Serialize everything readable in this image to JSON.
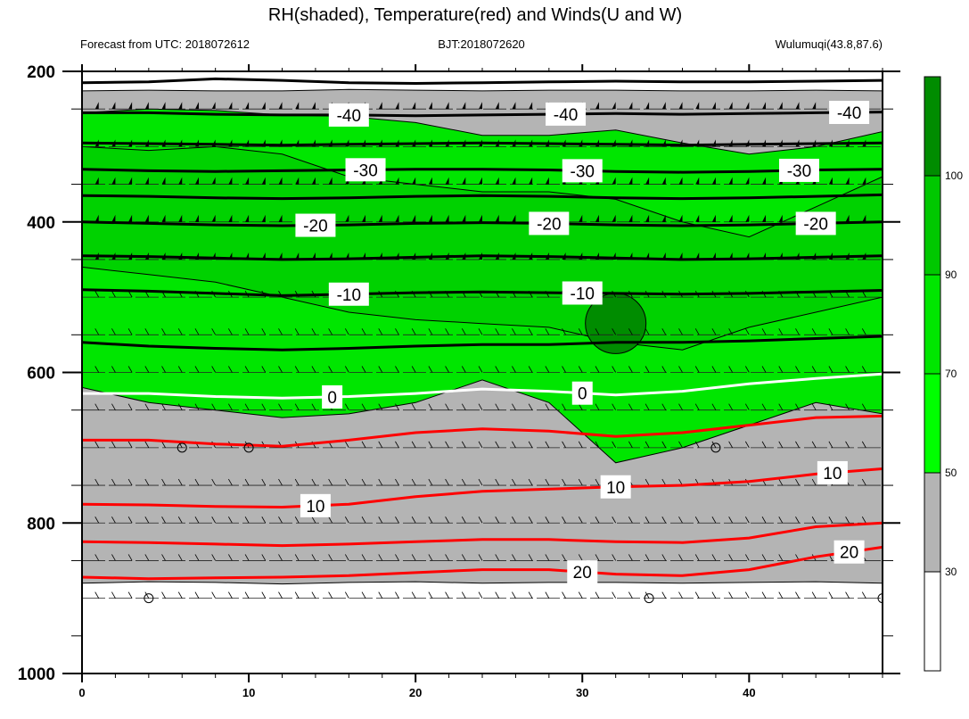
{
  "chart_data": {
    "type": "heatmap",
    "title": "RH(shaded), Temperature(red) and Winds(U and W)",
    "subtitle_left": "Forecast from UTC: 2018072612",
    "subtitle_center": "BJT:2018072620",
    "subtitle_right": "Wulumuqi(43.8,87.6)",
    "xlabel": "",
    "ylabel": "",
    "x_range": [
      0,
      48
    ],
    "y_range": [
      200,
      1000
    ],
    "y_inverted": true,
    "x_ticks": [
      "0",
      "10",
      "20",
      "30",
      "40"
    ],
    "y_ticks": [
      "200",
      "400",
      "600",
      "800",
      "1000"
    ],
    "colorbar": {
      "levels": [
        "30",
        "50",
        "70",
        "90",
        "100"
      ],
      "colors": [
        "#ffffff",
        "#b4b4b4",
        "#00ff00",
        "#00e600",
        "#00c800",
        "#008c00"
      ]
    },
    "rh_bands": [
      {
        "band": "30-50",
        "top": [
          226,
          225,
          226,
          226,
          224,
          225,
          226,
          225,
          225,
          226,
          226,
          225,
          226
        ],
        "bottom": [
          880,
          878,
          879,
          881,
          879,
          878,
          880,
          879,
          879,
          880,
          879,
          878,
          880
        ]
      },
      {
        "band": ">=50",
        "top": [
          255,
          250,
          252,
          258,
          260,
          268,
          285,
          285,
          278,
          295,
          310,
          300,
          280
        ],
        "bottom": [
          620,
          640,
          650,
          660,
          655,
          640,
          610,
          640,
          720,
          700,
          670,
          640,
          655
        ]
      },
      {
        "band": ">=70",
        "top": [
          300,
          305,
          300,
          310,
          340,
          350,
          360,
          360,
          370,
          400,
          420,
          380,
          340
        ],
        "bottom": [
          460,
          470,
          480,
          500,
          520,
          530,
          535,
          540,
          560,
          570,
          540,
          520,
          500
        ]
      },
      {
        "band": ">=90",
        "top": [
          495
        ],
        "bottom": [
          575
        ]
      }
    ],
    "temperature_contours": [
      {
        "level": "-40",
        "color": "black",
        "label": "-40",
        "y": [
          255,
          255,
          257,
          258,
          258,
          259,
          258,
          257,
          256,
          257,
          256,
          255,
          254
        ]
      },
      {
        "level": "-30",
        "color": "black",
        "label": "-30",
        "y": [
          330,
          332,
          333,
          332,
          331,
          330,
          330,
          331,
          333,
          334,
          333,
          331,
          330
        ]
      },
      {
        "level": "-20",
        "color": "black",
        "label": "-20",
        "y": [
          400,
          402,
          404,
          405,
          404,
          402,
          401,
          402,
          404,
          405,
          404,
          402,
          400
        ]
      },
      {
        "level": "-10",
        "color": "black",
        "label": "-10",
        "y": [
          490,
          492,
          495,
          498,
          496,
          494,
          493,
          494,
          495,
          496,
          495,
          493,
          491
        ]
      },
      {
        "level": "0",
        "color": "white",
        "label": "0",
        "y": [
          628,
          628,
          632,
          634,
          632,
          628,
          622,
          625,
          630,
          625,
          615,
          608,
          602
        ]
      },
      {
        "level": "10",
        "color": "red",
        "label": "10",
        "y": [
          775,
          776,
          778,
          779,
          775,
          765,
          758,
          755,
          752,
          750,
          745,
          735,
          728
        ]
      },
      {
        "level": "20",
        "color": "red",
        "label": "20",
        "y": [
          872,
          874,
          873,
          872,
          870,
          866,
          862,
          862,
          868,
          870,
          862,
          845,
          832
        ]
      }
    ],
    "secondary_contours": [
      {
        "color": "black",
        "y": [
          215,
          214,
          210,
          212,
          215,
          216,
          215,
          214,
          213,
          214,
          214,
          213,
          212
        ]
      },
      {
        "color": "black",
        "y": [
          295,
          296,
          297,
          298,
          297,
          296,
          295,
          296,
          297,
          298,
          297,
          296,
          295
        ]
      },
      {
        "color": "black",
        "y": [
          365,
          366,
          368,
          369,
          368,
          366,
          365,
          366,
          368,
          369,
          368,
          366,
          364
        ]
      },
      {
        "color": "black",
        "y": [
          445,
          446,
          448,
          450,
          449,
          447,
          445,
          446,
          448,
          450,
          449,
          447,
          445
        ]
      },
      {
        "color": "black",
        "y": [
          560,
          565,
          568,
          570,
          568,
          565,
          563,
          563,
          560,
          560,
          558,
          555,
          552
        ]
      },
      {
        "color": "red",
        "y": [
          690,
          690,
          695,
          698,
          690,
          680,
          675,
          678,
          685,
          680,
          670,
          660,
          658
        ]
      },
      {
        "color": "red",
        "y": [
          825,
          826,
          828,
          830,
          828,
          825,
          822,
          822,
          825,
          826,
          820,
          805,
          800
        ]
      }
    ],
    "wind_levels": [
      250,
      300,
      350,
      400,
      450,
      500,
      550,
      600,
      650,
      700,
      750,
      800,
      850,
      900
    ],
    "calm_points": [
      [
        4,
        900
      ],
      [
        6,
        700
      ],
      [
        10,
        700
      ],
      [
        34,
        900
      ],
      [
        38,
        700
      ],
      [
        48,
        900
      ]
    ],
    "colors": {
      "rh_low": "#ffffff",
      "rh_mid": "#b4b4b4",
      "rh_high": "#00e600",
      "rh_max": "#008c00",
      "temp_warm": "#ff0000",
      "freezing": "#ffffff"
    }
  }
}
